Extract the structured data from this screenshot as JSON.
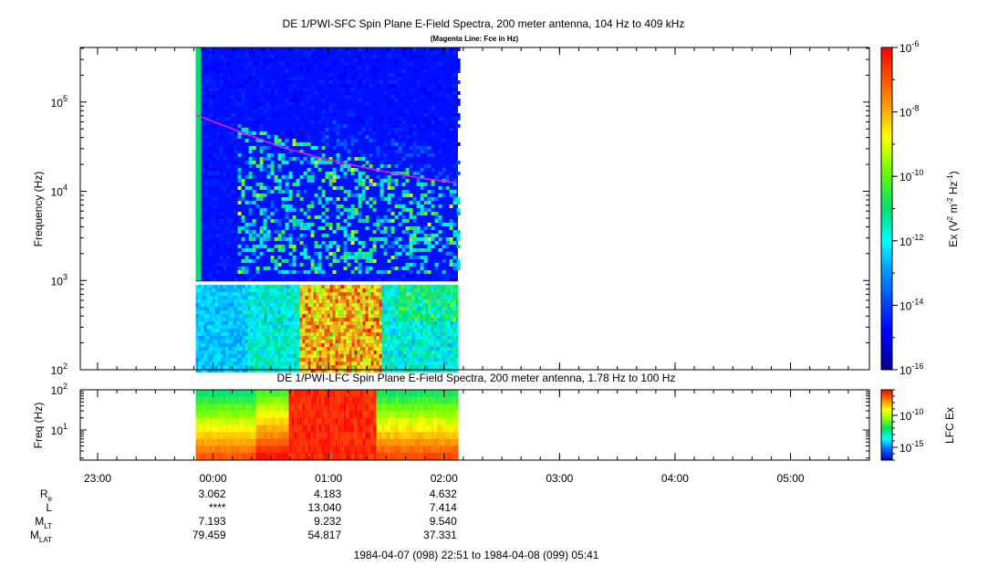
{
  "chart_data": [
    {
      "type": "heatmap",
      "title": "DE 1/PWI-SFC  Spin Plane E-Field Spectra, 200 meter antenna, 104 Hz to 409 kHz",
      "subtitle": "(Magenta Line: Fce in Hz)",
      "ylabel": "Frequency (Hz)",
      "yscale": "log",
      "ylim": [
        100,
        409000
      ],
      "yticks": [
        {
          "value": 100,
          "base": "10",
          "exp": "2"
        },
        {
          "value": 1000,
          "base": "10",
          "exp": "3"
        },
        {
          "value": 10000,
          "base": "10",
          "exp": "4"
        },
        {
          "value": 100000,
          "base": "10",
          "exp": "5"
        }
      ],
      "data_range_hours": [
        -0.15,
        2.12
      ],
      "fce_line": {
        "color": "#e020e0",
        "hours": [
          -0.15,
          0.2,
          0.6,
          1.0,
          1.4,
          1.8,
          2.1
        ],
        "hz": [
          72000,
          48000,
          31000,
          22500,
          17500,
          14000,
          12500
        ]
      },
      "colorbar": {
        "label_prefix": "Ex (V",
        "label_mid": " m",
        "label_end": " Hz",
        "label_suffix": ")",
        "sup_a": "2",
        "sup_b": "-2",
        "sup_c": "-1",
        "scale": "log",
        "range": [
          -16,
          -6
        ],
        "ticks": [
          {
            "value": -6,
            "base": "10",
            "exp": "-6"
          },
          {
            "value": -8,
            "base": "10",
            "exp": "-8"
          },
          {
            "value": -10,
            "base": "10",
            "exp": "-10"
          },
          {
            "value": -12,
            "base": "10",
            "exp": "-12"
          },
          {
            "value": -14,
            "base": "10",
            "exp": "-14"
          },
          {
            "value": -16,
            "base": "10",
            "exp": "-16"
          }
        ]
      }
    },
    {
      "type": "heatmap",
      "title": "DE 1/PWI-LFC  Spin Plane E-Field Spectra, 200 meter antenna, 1.78 Hz to 100 Hz",
      "ylabel": "Freq (Hz)",
      "yscale": "log",
      "ylim": [
        1.78,
        100
      ],
      "yticks": [
        {
          "value": 10,
          "base": "10",
          "exp": "1"
        },
        {
          "value": 100,
          "base": "10",
          "exp": "2"
        }
      ],
      "data_range_hours": [
        -0.15,
        2.12
      ],
      "colorbar": {
        "label": "LFC Ex",
        "scale": "log",
        "range": [
          -17,
          -6
        ],
        "ticks": [
          {
            "value": -10,
            "base": "10",
            "exp": "-10"
          },
          {
            "value": -15,
            "base": "10",
            "exp": "-15"
          }
        ]
      }
    }
  ],
  "time_axis": {
    "hours_range": [
      -1.15,
      5.683
    ],
    "ticks": [
      {
        "h": -1,
        "label": "23:00"
      },
      {
        "h": 0,
        "label": "00:00"
      },
      {
        "h": 1,
        "label": "01:00"
      },
      {
        "h": 2,
        "label": "02:00"
      },
      {
        "h": 3,
        "label": "03:00"
      },
      {
        "h": 4,
        "label": "04:00"
      },
      {
        "h": 5,
        "label": "05:00"
      }
    ]
  },
  "ephemeris": [
    {
      "name": "R",
      "sub": "e",
      "values": [
        "3.062",
        "4.183",
        "4.632"
      ]
    },
    {
      "name": "L",
      "sub": "",
      "values": [
        "****",
        "13.040",
        "7.414"
      ]
    },
    {
      "name": "M",
      "sub": "LT",
      "values": [
        "7.193",
        "9.232",
        "9.540"
      ]
    },
    {
      "name": "M",
      "sub": "LAT",
      "values": [
        "79.459",
        "54.817",
        "37.331"
      ]
    }
  ],
  "time_range_label": "1984-04-07 (098) 22:51 to 1984-04-08 (099) 05:41"
}
